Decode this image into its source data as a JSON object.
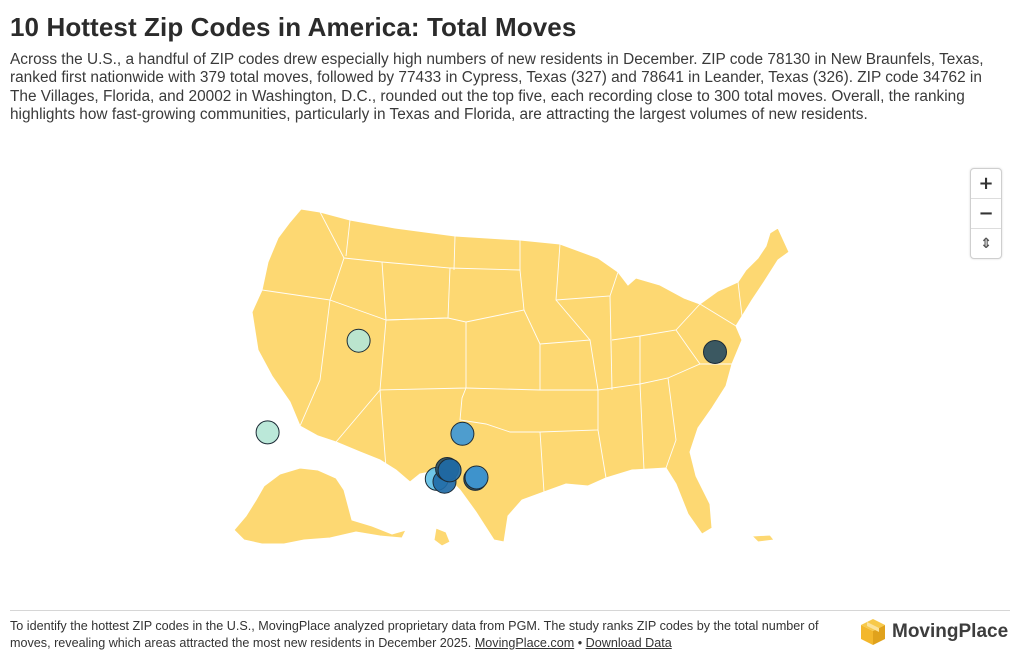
{
  "title": "10 Hottest Zip Codes in America: Total Moves",
  "description": "Across the U.S., a handful of ZIP codes drew especially high numbers of new residents in December. ZIP code 78130 in New Braunfels, Texas, ranked first nationwide with 379 total moves, followed by 77433 in Cypress, Texas (327) and 78641 in Leander, Texas (326). ZIP code 34762 in The Villages, Florida, and 20002 in Washington, D.C., rounded out the top five, each recording close to 300 total moves. Overall, the ranking highlights how fast-growing communities, particularly in Texas and Florida, are attracting the largest volumes of new residents.",
  "map": {
    "land_color": "#fdd872",
    "border_color": "#ffffff",
    "bubble_colors": [
      "#b5e6d6",
      "#62c0e6",
      "#3f98d6",
      "#1f6aa6",
      "#2a4d5f"
    ],
    "controls": {
      "zoom_in": "+",
      "zoom_out": "−",
      "reset": "⇕"
    },
    "bubbles": [
      {
        "lon": -104.8,
        "lat": 39.7,
        "color": "#b5e6d6"
      },
      {
        "lon": -111.9,
        "lat": 33.2,
        "color": "#b5e6d6"
      },
      {
        "lon": -96.7,
        "lat": 33.1,
        "color": "#3f98d6"
      },
      {
        "lon": -77.0,
        "lat": 38.9,
        "color": "#2a4d5f"
      },
      {
        "lon": -98.7,
        "lat": 29.9,
        "color": "#62c0e6"
      },
      {
        "lon": -98.1,
        "lat": 29.7,
        "color": "#1f6aa6"
      },
      {
        "lon": -97.9,
        "lat": 30.6,
        "color": "#2a4d5f"
      },
      {
        "lon": -97.7,
        "lat": 30.5,
        "color": "#1f6aa6"
      },
      {
        "lon": -95.7,
        "lat": 29.9,
        "color": "#2a4d5f"
      },
      {
        "lon": -95.6,
        "lat": 30.0,
        "color": "#3f98d6"
      }
    ]
  },
  "footer": {
    "text": "To identify the hottest ZIP codes in the U.S., MovingPlace analyzed proprietary data from PGM. The study ranks ZIP codes by the total number of moves, revealing which areas attracted the most new residents in December 2025.",
    "link1": "MovingPlace.com",
    "separator": "•",
    "link2": "Download Data"
  },
  "logo": {
    "text": "MovingPlace",
    "color": "#f3b72c"
  }
}
